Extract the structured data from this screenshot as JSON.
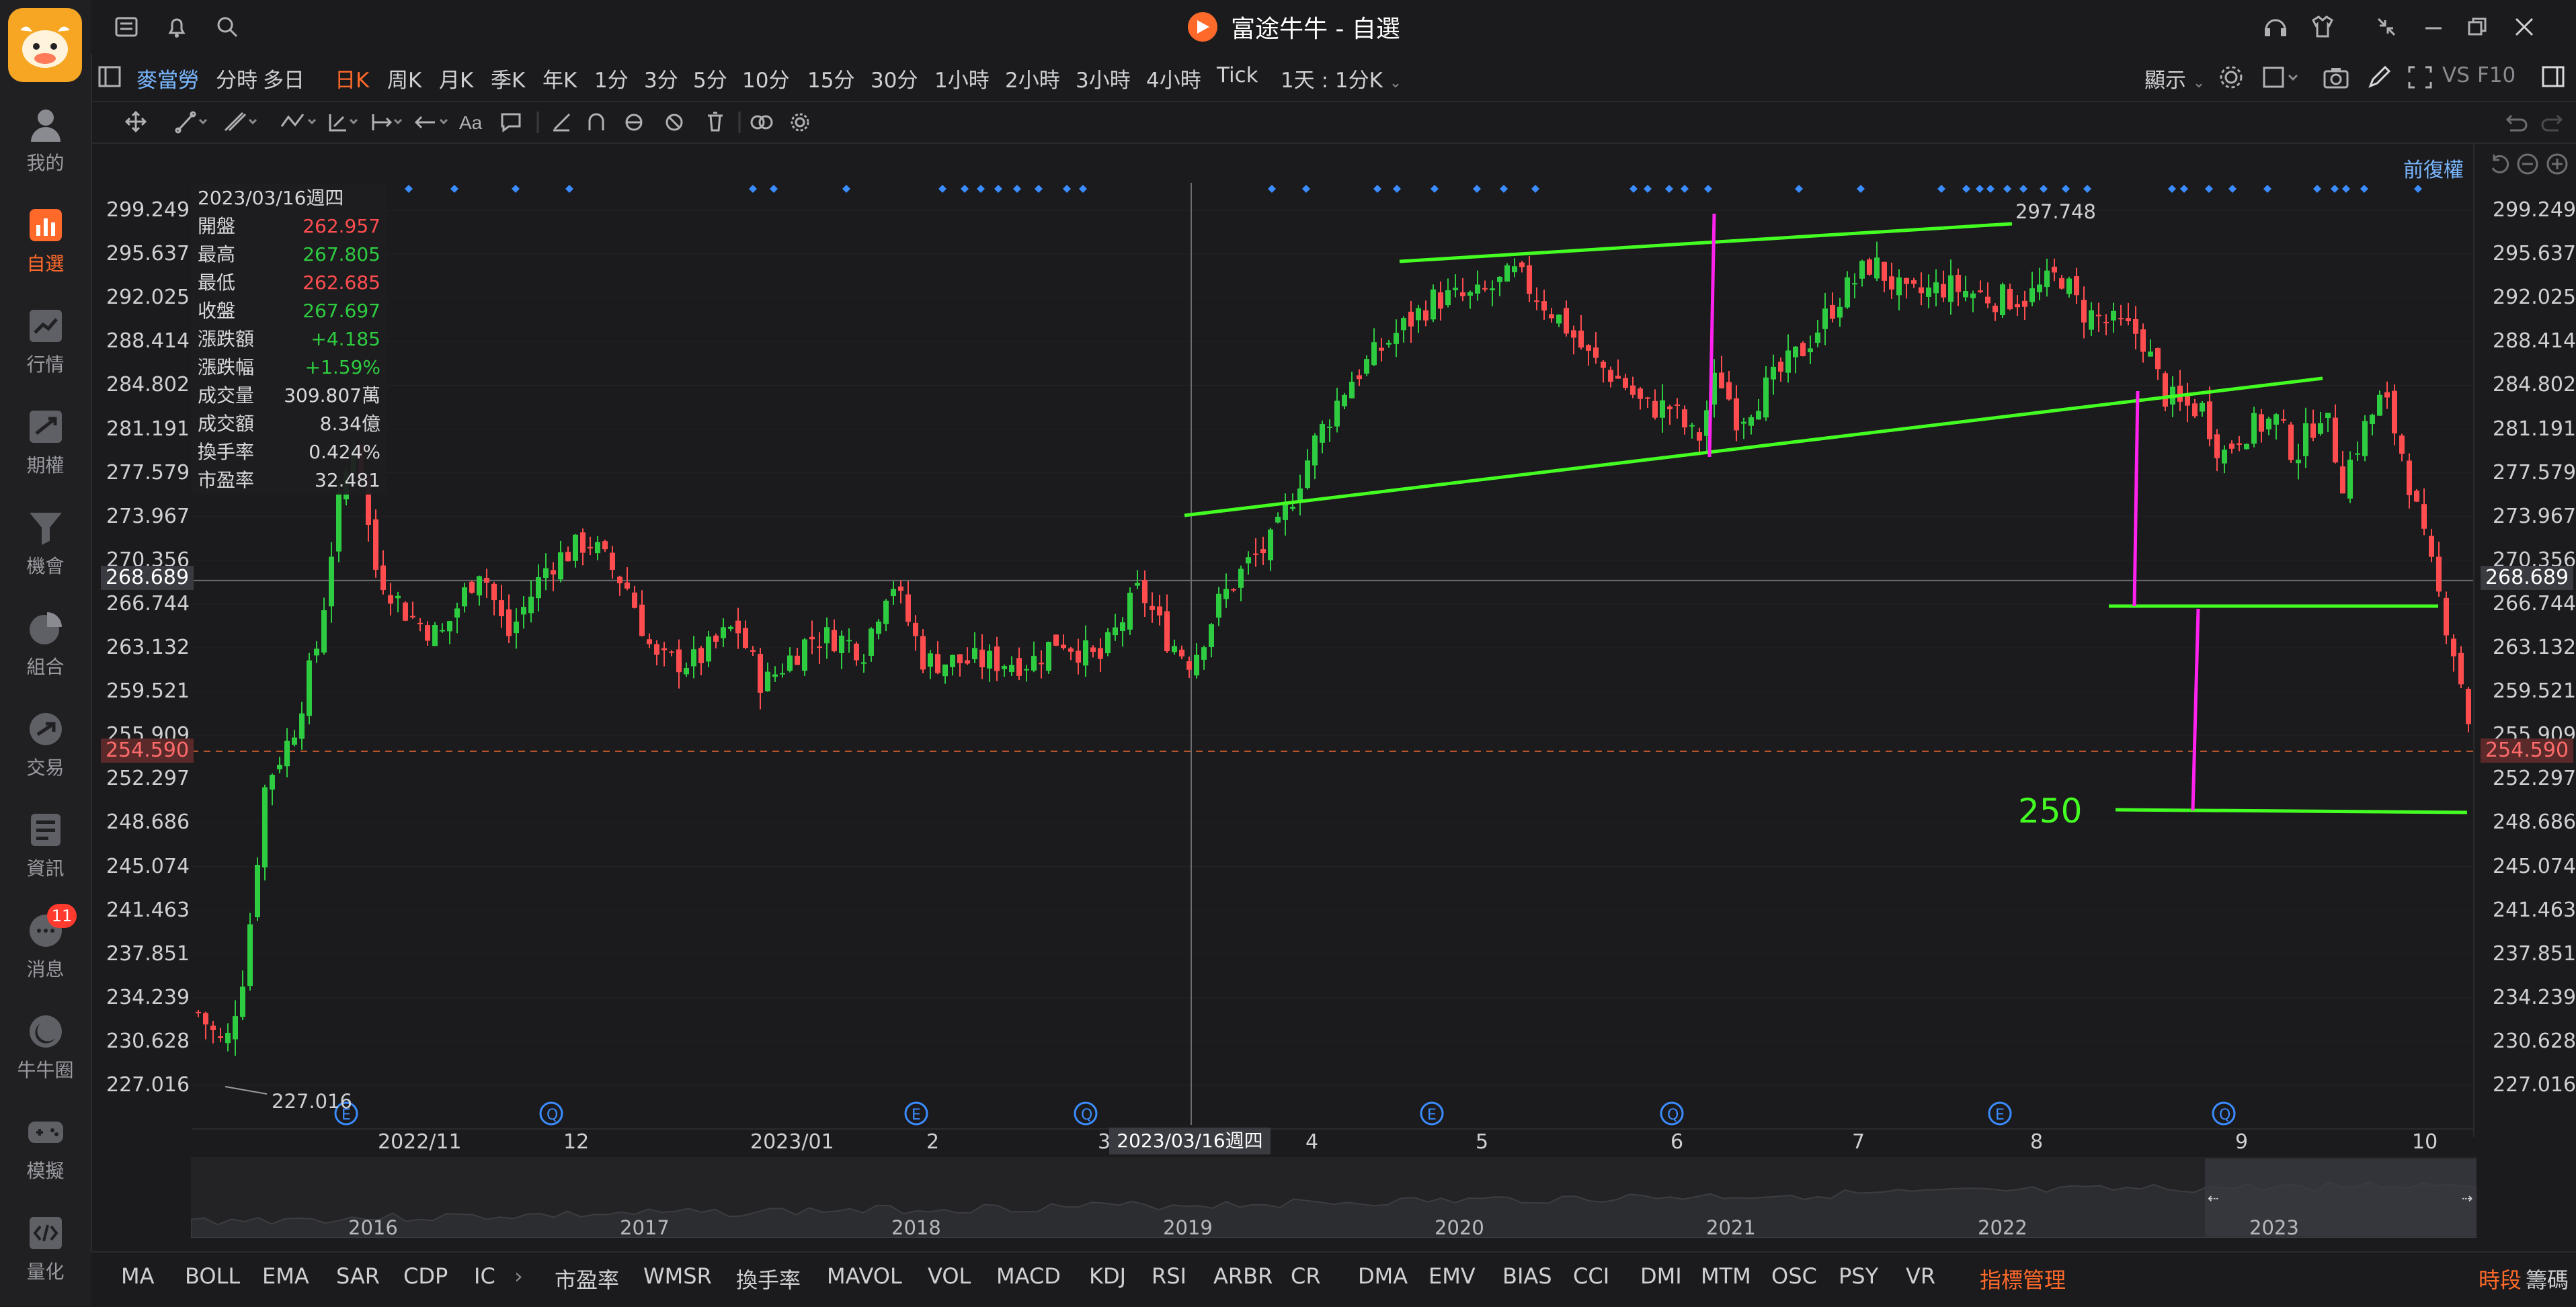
{
  "app": {
    "title": "富途牛牛 - 自選",
    "logo_icon": "futu-bull-logo"
  },
  "sidebar": {
    "items": [
      {
        "label": "我的",
        "icon": "user-icon"
      },
      {
        "label": "自選",
        "icon": "watchlist-chart-icon",
        "active": true
      },
      {
        "label": "行情",
        "icon": "market-trend-icon"
      },
      {
        "label": "期權",
        "icon": "options-icon"
      },
      {
        "label": "機會",
        "icon": "funnel-icon"
      },
      {
        "label": "組合",
        "icon": "pie-icon"
      },
      {
        "label": "交易",
        "icon": "trade-icon"
      },
      {
        "label": "資訊",
        "icon": "news-icon"
      },
      {
        "label": "消息",
        "icon": "message-icon",
        "badge": "11"
      },
      {
        "label": "牛牛圈",
        "icon": "community-icon"
      },
      {
        "label": "模擬",
        "icon": "gamepad-icon"
      },
      {
        "label": "量化",
        "icon": "code-icon"
      }
    ]
  },
  "toolbar": {
    "stock_name": "麥當勞",
    "periods": [
      "分時",
      "多日",
      "日K",
      "周K",
      "月K",
      "季K",
      "年K",
      "1分",
      "3分",
      "5分",
      "10分",
      "15分",
      "30分",
      "1小時",
      "2小時",
      "3小時",
      "4小時",
      "Tick"
    ],
    "active_period": "日K",
    "range_select": "1天 : 1分K",
    "display_label": "顯示",
    "right_labels": [
      "VS",
      "F10"
    ]
  },
  "chart": {
    "price_adjust_label": "前復權",
    "crosshair_price": "268.689",
    "last_price": "254.590",
    "crosshair_date": "2023/03/16週四",
    "high_mark": "297.748",
    "low_mark": "227.016",
    "annotation_text": "250",
    "y_ticks": [
      "299.249",
      "295.637",
      "292.025",
      "288.414",
      "284.802",
      "281.191",
      "277.579",
      "273.967",
      "270.356",
      "266.744",
      "263.132",
      "259.521",
      "255.909",
      "252.297",
      "248.686",
      "245.074",
      "241.463",
      "237.851",
      "234.239",
      "230.628",
      "227.016"
    ],
    "x_ticks": [
      "2022/11",
      "12",
      "2023/01",
      "2",
      "3",
      "4",
      "5",
      "6",
      "7",
      "8",
      "9",
      "10"
    ],
    "colors": {
      "up": "#2ecc40",
      "down": "#ff4d4f",
      "draw_line": "#44ff22",
      "measure_line": "#ff22ee",
      "event_dot": "#3b8cff"
    }
  },
  "info_panel": {
    "date": "2023/03/16週四",
    "rows": [
      {
        "k": "開盤",
        "v": "262.957",
        "c": "#ff4d4f"
      },
      {
        "k": "最高",
        "v": "267.805",
        "c": "#2ecc40"
      },
      {
        "k": "最低",
        "v": "262.685",
        "c": "#ff4d4f"
      },
      {
        "k": "收盤",
        "v": "267.697",
        "c": "#2ecc40"
      },
      {
        "k": "漲跌額",
        "v": "+4.185",
        "c": "#2ecc40"
      },
      {
        "k": "漲跌幅",
        "v": "+1.59%",
        "c": "#2ecc40"
      },
      {
        "k": "成交量",
        "v": "309.807萬",
        "c": "#d8d8da"
      },
      {
        "k": "成交額",
        "v": "8.34億",
        "c": "#d8d8da"
      },
      {
        "k": "換手率",
        "v": "0.424%",
        "c": "#d8d8da"
      },
      {
        "k": "市盈率",
        "v": "32.481",
        "c": "#d8d8da"
      }
    ]
  },
  "navigator": {
    "years": [
      "2016",
      "2017",
      "2018",
      "2019",
      "2020",
      "2021",
      "2022",
      "2023"
    ]
  },
  "indicators": {
    "left": [
      "MA",
      "BOLL",
      "EMA",
      "SAR",
      "CDP",
      "IC"
    ],
    "right": [
      "市盈率",
      "WMSR",
      "換手率",
      "MAVOL",
      "VOL",
      "MACD",
      "KDJ",
      "RSI",
      "ARBR",
      "CR",
      "DMA",
      "EMV",
      "BIAS",
      "CCI",
      "DMI",
      "MTM",
      "OSC",
      "PSY",
      "VR"
    ],
    "manage_label": "指標管理",
    "session_label": "時段",
    "chips_label": "籌碼"
  }
}
